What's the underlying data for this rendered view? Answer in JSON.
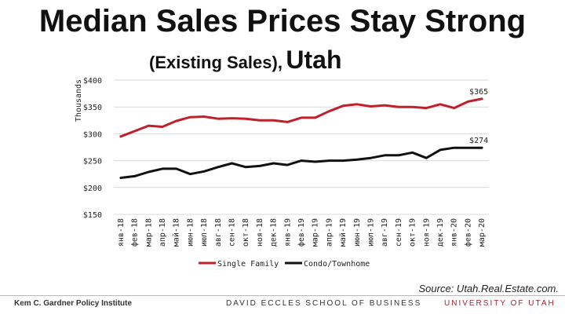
{
  "title": "Median Sales Prices Stay Strong",
  "subtitle_main": "(Existing Sales),",
  "subtitle_state": "Utah",
  "source": "Source: Utah.Real.Estate.com.",
  "footer": {
    "left": "Kem C. Gardner Policy Institute",
    "middle": "DAVID ECCLES SCHOOL OF BUSINESS",
    "right": "UNIVERSITY OF UTAH"
  },
  "colors": {
    "single_family": "#c0202a",
    "condo": "#111111",
    "accent": "#b0202a"
  },
  "chart_data": {
    "type": "line",
    "ylabel": "Thousands",
    "ylim": [
      150,
      400
    ],
    "yticks": [
      150,
      200,
      250,
      300,
      350,
      400
    ],
    "ytick_labels": [
      "$150",
      "$200",
      "$250",
      "$300",
      "$350",
      "$400"
    ],
    "categories": [
      "янв-18",
      "фев-18",
      "мар-18",
      "апр-18",
      "май-18",
      "июн-18",
      "июл-18",
      "авг-18",
      "сен-18",
      "окт-18",
      "ноя-18",
      "дек-18",
      "янв-19",
      "фев-19",
      "мар-19",
      "апр-19",
      "май-19",
      "июн-19",
      "июл-19",
      "авг-19",
      "сен-19",
      "окт-19",
      "ноя-19",
      "дек-19",
      "янв-20",
      "фев-20",
      "мар-20"
    ],
    "series": [
      {
        "name": "Single Family",
        "values": [
          295,
          305,
          315,
          313,
          324,
          331,
          332,
          328,
          329,
          328,
          325,
          325,
          322,
          330,
          330,
          342,
          352,
          355,
          351,
          353,
          350,
          350,
          348,
          355,
          348,
          360,
          365
        ],
        "end_label": "$365"
      },
      {
        "name": "Condo/Townhome",
        "values": [
          218,
          221,
          229,
          235,
          235,
          225,
          230,
          238,
          245,
          238,
          240,
          245,
          242,
          250,
          248,
          250,
          250,
          252,
          255,
          260,
          260,
          265,
          255,
          270,
          274,
          274,
          274
        ],
        "end_label": "$274"
      }
    ],
    "legend_position": "bottom"
  }
}
